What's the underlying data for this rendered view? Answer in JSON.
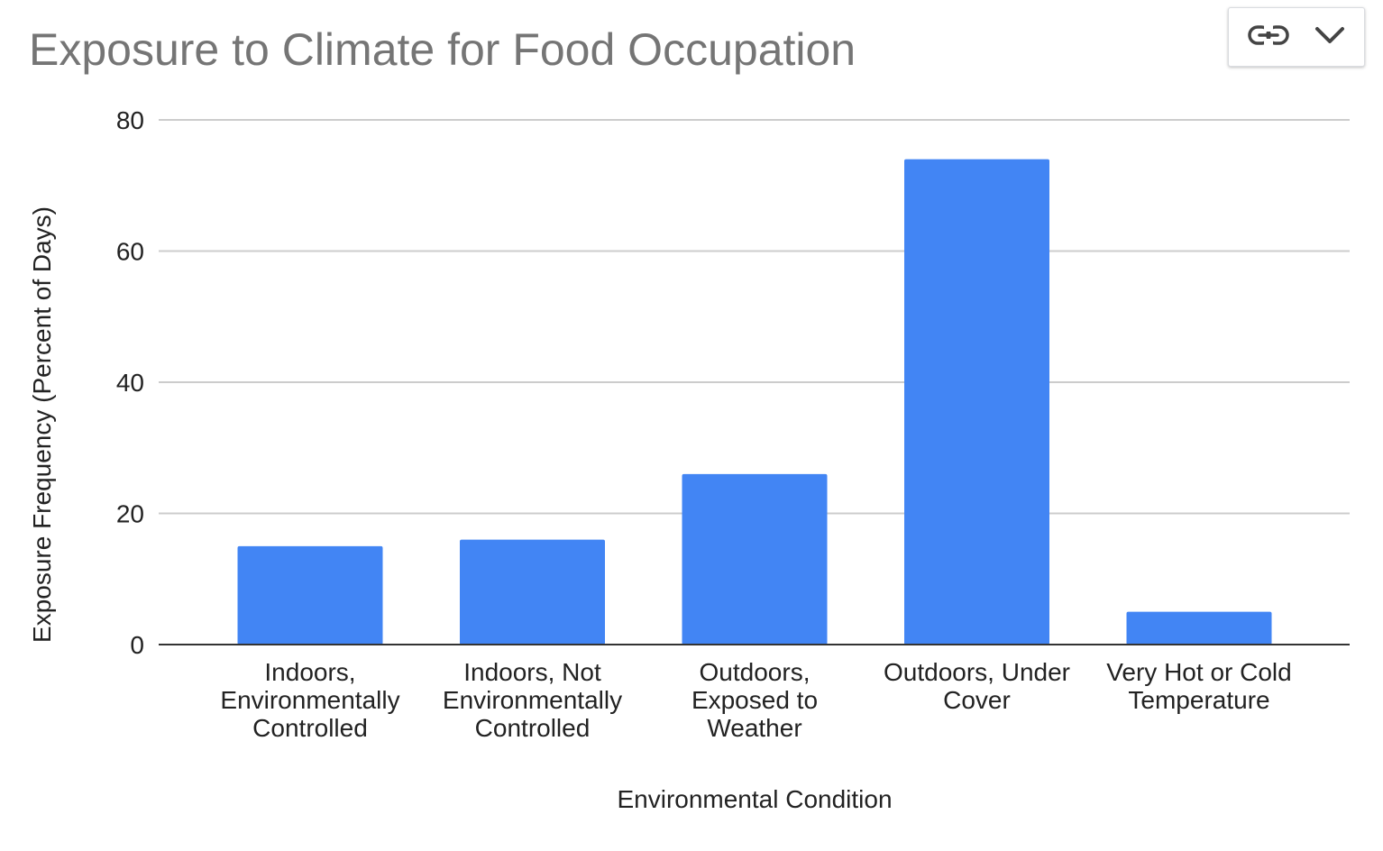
{
  "toolbar": {
    "link_icon": "link-icon",
    "dropdown_icon": "chevron-down-icon"
  },
  "chart_data": {
    "type": "bar",
    "title": "Exposure to Climate for Food Occupation",
    "xlabel": "Environmental Condition",
    "ylabel": "Exposure Frequency (Percent of Days)",
    "categories": [
      [
        "Indoors,",
        "Environmentally",
        "Controlled"
      ],
      [
        "Indoors, Not",
        "Environmentally",
        "Controlled"
      ],
      [
        "Outdoors,",
        "Exposed to",
        "Weather"
      ],
      [
        "Outdoors, Under",
        "Cover"
      ],
      [
        "Very Hot or Cold",
        "Temperature"
      ]
    ],
    "values": [
      15,
      16,
      26,
      74,
      5
    ],
    "ylim": [
      0,
      80
    ],
    "yticks": [
      0,
      20,
      40,
      60,
      80
    ],
    "grid": true,
    "bar_color": "#4285f4",
    "grid_color": "#cccccc",
    "axis_color": "#333333"
  }
}
